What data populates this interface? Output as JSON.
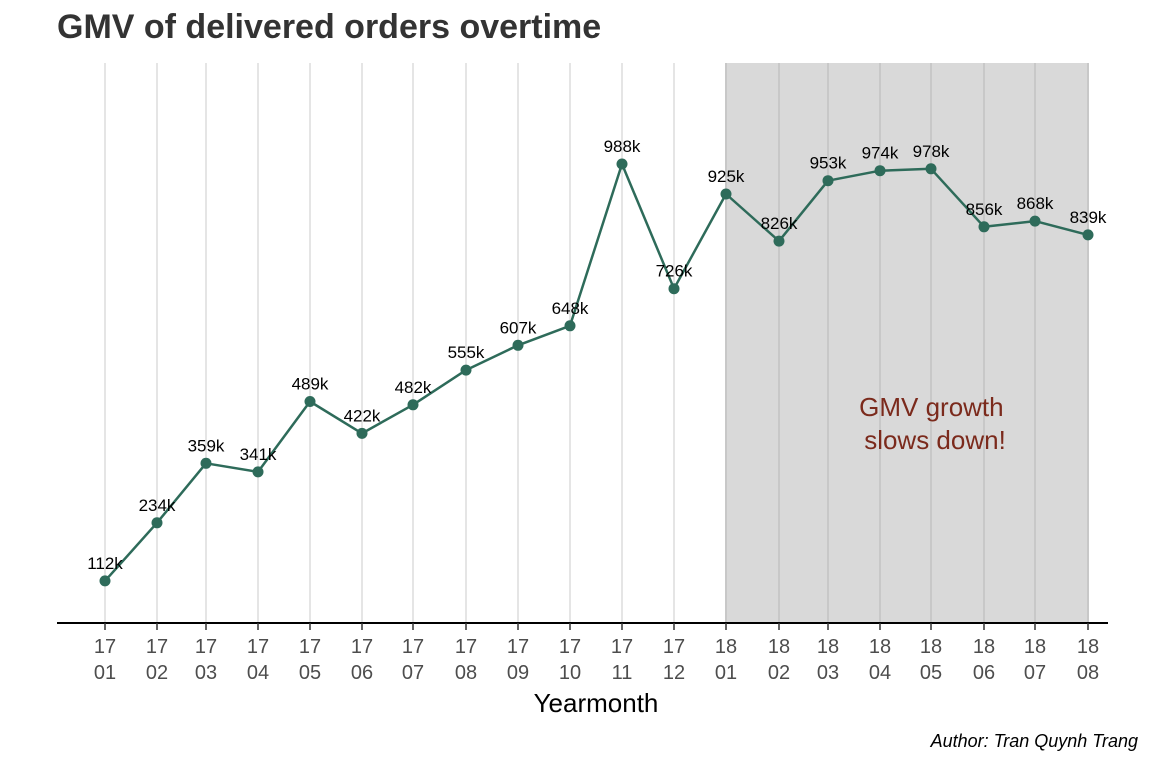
{
  "title": "GMV of delivered orders overtime",
  "caption": "Author: Tran Quynh Trang",
  "colors": {
    "line": "#2e6b5a",
    "highlight": "#d9d9d9",
    "grid": "#e5e5e5",
    "grid_in_highlight": "#c8c8c8",
    "annotation": "#7b2a1c",
    "axis": "#000000"
  },
  "chart_data": {
    "type": "line",
    "title": "GMV of delivered orders overtime",
    "xlabel": "Yearmonth",
    "ylabel": "",
    "categories": [
      [
        "17",
        "01"
      ],
      [
        "17",
        "02"
      ],
      [
        "17",
        "03"
      ],
      [
        "17",
        "04"
      ],
      [
        "17",
        "05"
      ],
      [
        "17",
        "06"
      ],
      [
        "17",
        "07"
      ],
      [
        "17",
        "08"
      ],
      [
        "17",
        "09"
      ],
      [
        "17",
        "10"
      ],
      [
        "17",
        "11"
      ],
      [
        "17",
        "12"
      ],
      [
        "18",
        "01"
      ],
      [
        "18",
        "02"
      ],
      [
        "18",
        "03"
      ],
      [
        "18",
        "04"
      ],
      [
        "18",
        "05"
      ],
      [
        "18",
        "06"
      ],
      [
        "18",
        "07"
      ],
      [
        "18",
        "08"
      ]
    ],
    "values": [
      112,
      234,
      359,
      341,
      489,
      422,
      482,
      555,
      607,
      648,
      988,
      726,
      925,
      826,
      953,
      974,
      978,
      856,
      868,
      839
    ],
    "value_unit": "k",
    "data_labels": [
      "112k",
      "234k",
      "359k",
      "341k",
      "489k",
      "422k",
      "482k",
      "555k",
      "607k",
      "648k",
      "988k",
      "726k",
      "925k",
      "826k",
      "953k",
      "974k",
      "978k",
      "856k",
      "868k",
      "839k"
    ],
    "highlight_range": [
      [
        "18",
        "01"
      ],
      [
        "18",
        "08"
      ]
    ],
    "annotation": [
      "GMV growth",
      "slows down!"
    ],
    "grid": "vertical-only",
    "legend": "none"
  }
}
